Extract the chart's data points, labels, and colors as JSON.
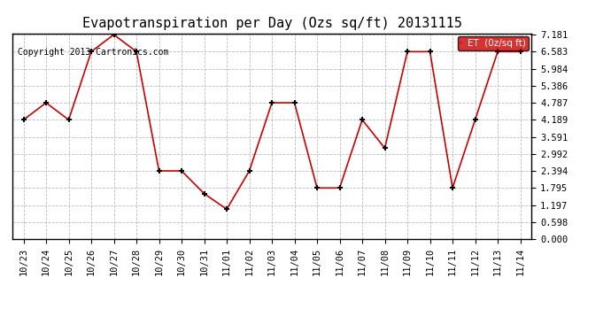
{
  "title": "Evapotranspiration per Day (Ozs sq/ft) 20131115",
  "copyright": "Copyright 2013 Cartronics.com",
  "legend_label": "ET  (0z/sq ft)",
  "x_labels": [
    "10/23",
    "10/24",
    "10/25",
    "10/26",
    "10/27",
    "10/28",
    "10/29",
    "10/30",
    "10/31",
    "11/01",
    "11/02",
    "11/03",
    "11/04",
    "11/05",
    "11/06",
    "11/07",
    "11/08",
    "11/09",
    "11/10",
    "11/11",
    "11/12",
    "11/13",
    "11/14"
  ],
  "y_values": [
    4.189,
    4.787,
    4.189,
    6.583,
    7.181,
    6.583,
    2.394,
    2.394,
    1.596,
    1.048,
    2.394,
    4.787,
    4.787,
    1.795,
    1.795,
    4.189,
    3.192,
    6.583,
    6.583,
    1.795,
    4.189,
    6.583,
    6.583
  ],
  "y_min": 0.0,
  "y_max": 7.181,
  "y_ticks": [
    0.0,
    0.598,
    1.197,
    1.795,
    2.394,
    2.992,
    3.591,
    4.189,
    4.787,
    5.386,
    5.984,
    6.583,
    7.181
  ],
  "line_color": "#cc0000",
  "marker_color": "#000000",
  "bg_color": "#ffffff",
  "grid_color": "#bbbbbb",
  "legend_bg": "#cc0000",
  "legend_text_color": "#ffffff",
  "title_fontsize": 11,
  "tick_fontsize": 7.5,
  "copyright_fontsize": 7
}
